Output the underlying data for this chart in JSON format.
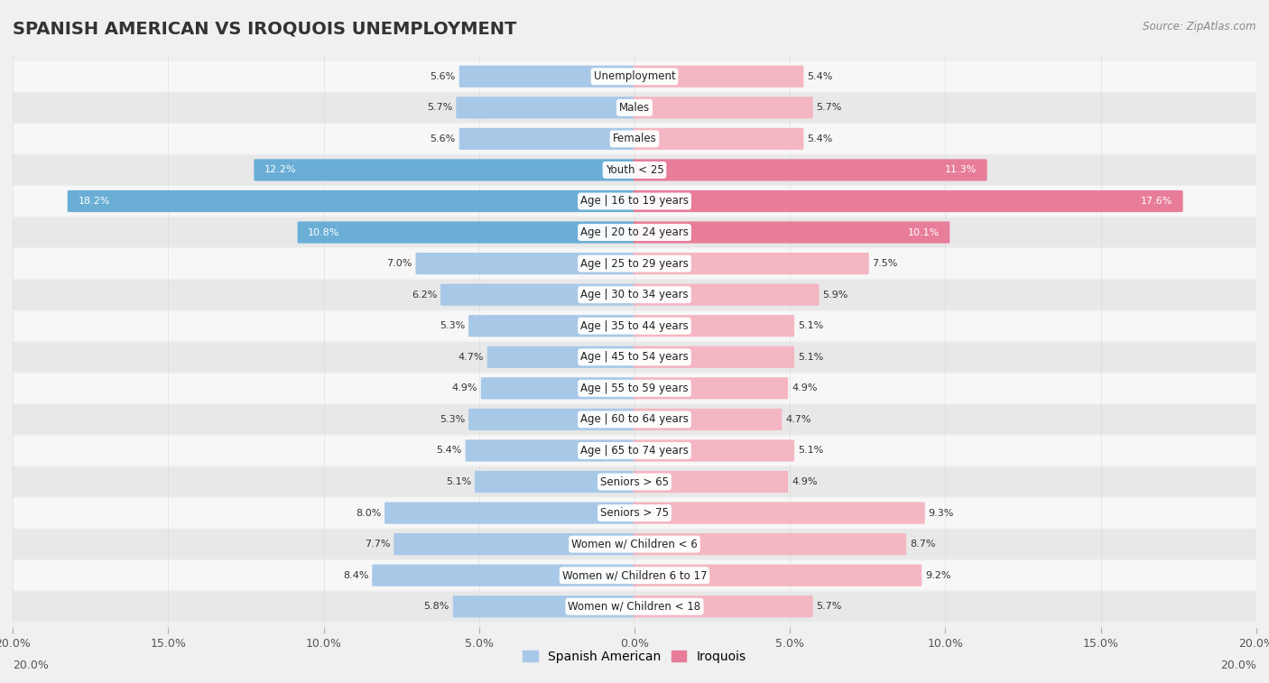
{
  "title": "SPANISH AMERICAN VS IROQUOIS UNEMPLOYMENT",
  "source": "Source: ZipAtlas.com",
  "categories": [
    "Unemployment",
    "Males",
    "Females",
    "Youth < 25",
    "Age | 16 to 19 years",
    "Age | 20 to 24 years",
    "Age | 25 to 29 years",
    "Age | 30 to 34 years",
    "Age | 35 to 44 years",
    "Age | 45 to 54 years",
    "Age | 55 to 59 years",
    "Age | 60 to 64 years",
    "Age | 65 to 74 years",
    "Seniors > 65",
    "Seniors > 75",
    "Women w/ Children < 6",
    "Women w/ Children 6 to 17",
    "Women w/ Children < 18"
  ],
  "spanish_american": [
    5.6,
    5.7,
    5.6,
    12.2,
    18.2,
    10.8,
    7.0,
    6.2,
    5.3,
    4.7,
    4.9,
    5.3,
    5.4,
    5.1,
    8.0,
    7.7,
    8.4,
    5.8
  ],
  "iroquois": [
    5.4,
    5.7,
    5.4,
    11.3,
    17.6,
    10.1,
    7.5,
    5.9,
    5.1,
    5.1,
    4.9,
    4.7,
    5.1,
    4.9,
    9.3,
    8.7,
    9.2,
    5.7
  ],
  "spanish_color_normal": "#a8c8e8",
  "spanish_color_highlight": "#6aaed6",
  "iroquois_color_normal": "#f4b6c2",
  "iroquois_color_highlight": "#e87d9a",
  "label_bg_normal": "#ffffff",
  "label_bg_highlight": "#f0f0f0",
  "bar_height": 0.62,
  "xlim": 20.0,
  "background_color": "#f0f0f0",
  "row_bg_light": "#f7f7f7",
  "row_bg_dark": "#e8e8e8",
  "tick_positions": [
    -20,
    -15,
    -10,
    -5,
    0,
    5,
    10,
    15,
    20
  ],
  "tick_labels": [
    "20.0%",
    "15.0%",
    "10.0%",
    "5.0%",
    "0.0%",
    "5.0%",
    "10.0%",
    "15.0%",
    "20.0%"
  ]
}
